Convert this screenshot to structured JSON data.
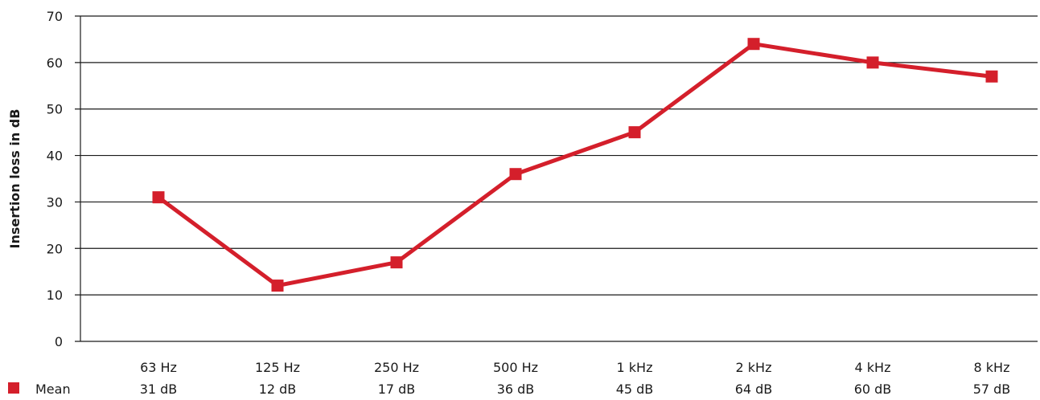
{
  "chart_data": {
    "type": "line",
    "ylabel": "Insertion loss in dB",
    "ylim": [
      0,
      70
    ],
    "yticks": [
      0,
      10,
      20,
      30,
      40,
      50,
      60,
      70
    ],
    "grid": true,
    "categories": [
      "63 Hz",
      "125 Hz",
      "250 Hz",
      "500 Hz",
      "1 kHz",
      "2 kHz",
      "4 kHz",
      "8 kHz"
    ],
    "series": [
      {
        "name": "Mean",
        "values": [
          31,
          12,
          17,
          36,
          45,
          64,
          60,
          57
        ],
        "value_labels": [
          "31 dB",
          "12 dB",
          "17 dB",
          "36 dB",
          "45 dB",
          "64 dB",
          "60 dB",
          "57 dB"
        ],
        "color": "#d41f2b"
      }
    ],
    "legend_position": "bottom-left"
  }
}
